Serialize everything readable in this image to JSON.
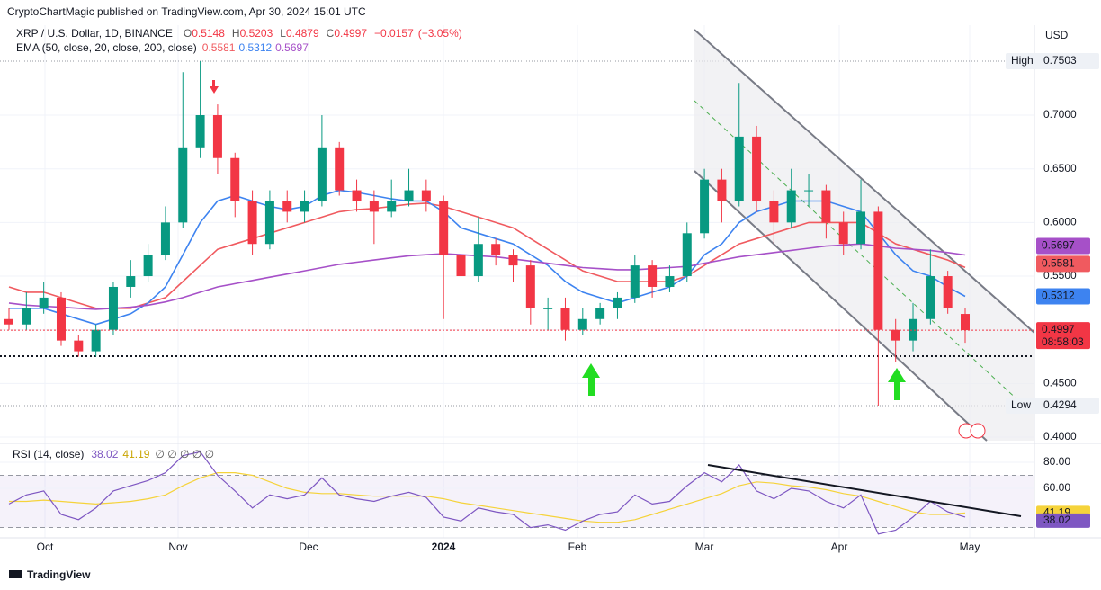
{
  "chart_data": {
    "type": "candlestick",
    "publisher": "CryptoChartMagic published on TradingView.com, Apr 30, 2024 15:01 UTC",
    "symbol": "XRP / U.S. Dollar, 1D, BINANCE",
    "ohlc_labels": [
      "O",
      "H",
      "L",
      "C"
    ],
    "open": 0.5148,
    "high": 0.5203,
    "low": 0.4879,
    "close": 0.4997,
    "change": {
      "value": -0.0157,
      "label": "−0.0157"
    },
    "change_pct": {
      "value": -3.05,
      "label": "(−3.05%)"
    },
    "indicator_label": "EMA (50, close, 20, close, 200, close)",
    "up_color": "#089981",
    "down_color": "#f23645",
    "candles": [
      [
        0.51,
        0.52,
        0.5,
        0.505
      ],
      [
        0.505,
        0.535,
        0.5,
        0.52
      ],
      [
        0.52,
        0.545,
        0.515,
        0.53
      ],
      [
        0.53,
        0.535,
        0.485,
        0.49
      ],
      [
        0.49,
        0.495,
        0.475,
        0.48
      ],
      [
        0.48,
        0.505,
        0.475,
        0.5
      ],
      [
        0.5,
        0.545,
        0.495,
        0.54
      ],
      [
        0.54,
        0.565,
        0.53,
        0.55
      ],
      [
        0.55,
        0.58,
        0.545,
        0.57
      ],
      [
        0.57,
        0.615,
        0.565,
        0.6
      ],
      [
        0.6,
        0.74,
        0.595,
        0.67
      ],
      [
        0.67,
        0.7503,
        0.66,
        0.7
      ],
      [
        0.7,
        0.71,
        0.645,
        0.66
      ],
      [
        0.66,
        0.665,
        0.605,
        0.62
      ],
      [
        0.62,
        0.63,
        0.57,
        0.58
      ],
      [
        0.58,
        0.63,
        0.575,
        0.62
      ],
      [
        0.62,
        0.63,
        0.6,
        0.61
      ],
      [
        0.61,
        0.63,
        0.6,
        0.62
      ],
      [
        0.62,
        0.7,
        0.615,
        0.67
      ],
      [
        0.67,
        0.675,
        0.625,
        0.63
      ],
      [
        0.63,
        0.64,
        0.61,
        0.62
      ],
      [
        0.62,
        0.63,
        0.58,
        0.61
      ],
      [
        0.61,
        0.64,
        0.605,
        0.62
      ],
      [
        0.62,
        0.65,
        0.615,
        0.63
      ],
      [
        0.63,
        0.64,
        0.61,
        0.62
      ],
      [
        0.62,
        0.625,
        0.51,
        0.57
      ],
      [
        0.57,
        0.575,
        0.54,
        0.55
      ],
      [
        0.55,
        0.605,
        0.545,
        0.58
      ],
      [
        0.58,
        0.585,
        0.56,
        0.57
      ],
      [
        0.57,
        0.575,
        0.545,
        0.56
      ],
      [
        0.56,
        0.565,
        0.505,
        0.52
      ],
      [
        0.52,
        0.53,
        0.5,
        0.52
      ],
      [
        0.52,
        0.53,
        0.49,
        0.5
      ],
      [
        0.5,
        0.52,
        0.495,
        0.51
      ],
      [
        0.51,
        0.525,
        0.505,
        0.52
      ],
      [
        0.52,
        0.535,
        0.51,
        0.53
      ],
      [
        0.53,
        0.57,
        0.525,
        0.56
      ],
      [
        0.56,
        0.565,
        0.53,
        0.54
      ],
      [
        0.54,
        0.56,
        0.535,
        0.55
      ],
      [
        0.55,
        0.6,
        0.545,
        0.59
      ],
      [
        0.59,
        0.65,
        0.585,
        0.64
      ],
      [
        0.64,
        0.65,
        0.6,
        0.62
      ],
      [
        0.62,
        0.73,
        0.615,
        0.68
      ],
      [
        0.68,
        0.69,
        0.61,
        0.62
      ],
      [
        0.62,
        0.63,
        0.58,
        0.6
      ],
      [
        0.6,
        0.65,
        0.595,
        0.63
      ],
      [
        0.63,
        0.645,
        0.615,
        0.63
      ],
      [
        0.63,
        0.635,
        0.585,
        0.6
      ],
      [
        0.6,
        0.61,
        0.57,
        0.58
      ],
      [
        0.58,
        0.64,
        0.575,
        0.61
      ],
      [
        0.61,
        0.615,
        0.4294,
        0.5
      ],
      [
        0.5,
        0.51,
        0.47,
        0.49
      ],
      [
        0.49,
        0.525,
        0.48,
        0.51
      ],
      [
        0.51,
        0.575,
        0.505,
        0.55
      ],
      [
        0.55,
        0.555,
        0.515,
        0.52
      ],
      [
        0.5148,
        0.5203,
        0.4879,
        0.4997
      ]
    ],
    "series": [
      {
        "name": "EMA 50",
        "color": "#f05a5f",
        "values": [
          0.54,
          0.535,
          0.535,
          0.53,
          0.525,
          0.52,
          0.52,
          0.52,
          0.525,
          0.53,
          0.545,
          0.56,
          0.575,
          0.58,
          0.585,
          0.59,
          0.595,
          0.6,
          0.605,
          0.61,
          0.612,
          0.613,
          0.615,
          0.617,
          0.618,
          0.615,
          0.61,
          0.605,
          0.6,
          0.595,
          0.585,
          0.575,
          0.565,
          0.555,
          0.55,
          0.545,
          0.545,
          0.545,
          0.545,
          0.55,
          0.56,
          0.57,
          0.58,
          0.585,
          0.59,
          0.595,
          0.6,
          0.6,
          0.6,
          0.6,
          0.59,
          0.58,
          0.575,
          0.57,
          0.565,
          0.5581
        ]
      },
      {
        "name": "EMA 20",
        "color": "#3d83f0",
        "values": [
          0.52,
          0.52,
          0.52,
          0.515,
          0.51,
          0.505,
          0.51,
          0.515,
          0.525,
          0.54,
          0.57,
          0.6,
          0.62,
          0.625,
          0.62,
          0.615,
          0.612,
          0.615,
          0.625,
          0.63,
          0.628,
          0.625,
          0.622,
          0.62,
          0.62,
          0.61,
          0.595,
          0.59,
          0.585,
          0.58,
          0.57,
          0.56,
          0.545,
          0.535,
          0.53,
          0.525,
          0.53,
          0.535,
          0.54,
          0.55,
          0.57,
          0.58,
          0.6,
          0.61,
          0.615,
          0.62,
          0.62,
          0.62,
          0.615,
          0.61,
          0.59,
          0.57,
          0.555,
          0.55,
          0.54,
          0.5312
        ]
      },
      {
        "name": "EMA 200",
        "color": "#a650c8",
        "values": [
          0.525,
          0.523,
          0.522,
          0.521,
          0.52,
          0.519,
          0.52,
          0.521,
          0.523,
          0.526,
          0.53,
          0.535,
          0.54,
          0.543,
          0.546,
          0.549,
          0.552,
          0.555,
          0.558,
          0.561,
          0.563,
          0.565,
          0.567,
          0.569,
          0.57,
          0.571,
          0.57,
          0.569,
          0.568,
          0.566,
          0.564,
          0.562,
          0.56,
          0.558,
          0.557,
          0.556,
          0.556,
          0.557,
          0.558,
          0.559,
          0.562,
          0.565,
          0.568,
          0.57,
          0.572,
          0.574,
          0.576,
          0.578,
          0.579,
          0.58,
          0.578,
          0.576,
          0.575,
          0.574,
          0.572,
          0.5697
        ]
      }
    ],
    "currency": "USD",
    "ylim": [
      0.3967,
      0.7838
    ],
    "yticks": [
      {
        "value": 0.4,
        "label": "0.4000"
      },
      {
        "value": 0.45,
        "label": "0.4500"
      },
      {
        "value": 0.5,
        "label": "0.5000"
      },
      {
        "value": 0.55,
        "label": "0.5500"
      },
      {
        "value": 0.6,
        "label": "0.6000"
      },
      {
        "value": 0.65,
        "label": "0.6500"
      },
      {
        "value": 0.7,
        "label": "0.7000"
      }
    ],
    "high_marker": {
      "label": "High",
      "value": 0.7503
    },
    "low_marker": {
      "label": "Low",
      "value": 0.4294
    },
    "countdown": "08:58:03",
    "x_labels": [
      "Oct",
      "Nov",
      "Dec",
      "2024",
      "Feb",
      "Mar",
      "Apr",
      "May"
    ],
    "rsi": {
      "label": "RSI (14, close)",
      "flags": "∅ ∅ ∅ ∅ ∅",
      "color": "#7e57c2",
      "ma_color": "#f5d33b",
      "values": [
        48,
        55,
        58,
        40,
        36,
        45,
        58,
        62,
        66,
        72,
        85,
        88,
        70,
        58,
        45,
        55,
        52,
        55,
        68,
        55,
        52,
        50,
        54,
        57,
        53,
        38,
        35,
        45,
        42,
        40,
        30,
        32,
        28,
        35,
        40,
        42,
        55,
        48,
        50,
        62,
        72,
        65,
        78,
        58,
        52,
        60,
        58,
        50,
        45,
        55,
        25,
        28,
        38,
        50,
        42,
        38.02
      ],
      "ma_values": [
        50,
        50,
        51,
        50,
        49,
        48,
        49,
        50,
        52,
        55,
        62,
        68,
        72,
        72,
        70,
        65,
        60,
        57,
        56,
        56,
        55,
        54,
        54,
        54,
        54,
        52,
        49,
        47,
        45,
        43,
        41,
        39,
        37,
        35,
        34,
        34,
        36,
        40,
        44,
        48,
        52,
        56,
        62,
        65,
        64,
        62,
        61,
        59,
        56,
        54,
        50,
        46,
        42,
        40,
        40,
        41.19
      ],
      "ylim": [
        22.8,
        92.4
      ],
      "bands": [
        30,
        70
      ],
      "yticks": [
        {
          "value": 60,
          "label": "60.00"
        },
        {
          "value": 80,
          "label": "80.00"
        }
      ]
    },
    "brand": "TradingView"
  }
}
